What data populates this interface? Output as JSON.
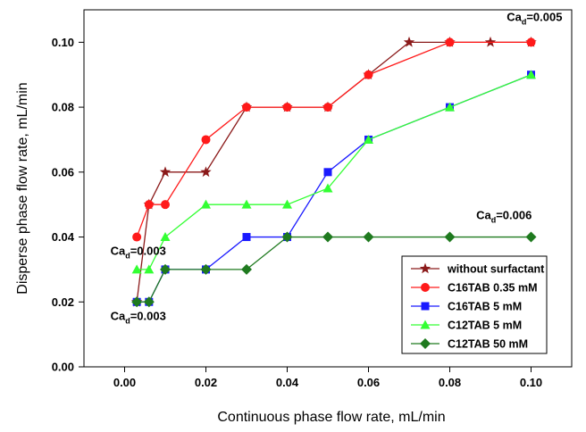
{
  "chart_data": {
    "type": "line",
    "xlabel": "Continuous phase flow rate, mL/min",
    "ylabel": "Disperse phase flow rate, mL/min",
    "xlim": [
      -0.01,
      0.11
    ],
    "ylim": [
      0.0,
      0.11
    ],
    "xticks": [
      "0.00",
      "0.02",
      "0.04",
      "0.06",
      "0.08",
      "0.10"
    ],
    "yticks": [
      "0.00",
      "0.02",
      "0.04",
      "0.06",
      "0.08",
      "0.10"
    ],
    "grid": false,
    "legend_position": "bottom-right",
    "series": [
      {
        "name": "without surfactant",
        "color": "#8b1a1a",
        "marker": "star",
        "x": [
          0.003,
          0.006,
          0.01,
          0.02,
          0.03,
          0.04,
          0.05,
          0.06,
          0.07,
          0.08,
          0.09,
          0.1
        ],
        "y": [
          0.02,
          0.05,
          0.06,
          0.06,
          0.08,
          0.08,
          0.08,
          0.09,
          0.1,
          0.1,
          0.1,
          0.1
        ]
      },
      {
        "name": "C16TAB 0.35 mM",
        "color": "#ff1a1a",
        "marker": "circle",
        "x": [
          0.003,
          0.006,
          0.01,
          0.02,
          0.03,
          0.04,
          0.05,
          0.06,
          0.08,
          0.1
        ],
        "y": [
          0.04,
          0.05,
          0.05,
          0.07,
          0.08,
          0.08,
          0.08,
          0.09,
          0.1,
          0.1
        ]
      },
      {
        "name": "C16TAB 5 mM",
        "color": "#1a1aff",
        "marker": "square",
        "x": [
          0.003,
          0.006,
          0.01,
          0.02,
          0.03,
          0.04,
          0.05,
          0.06,
          0.08,
          0.1
        ],
        "y": [
          0.02,
          0.02,
          0.03,
          0.03,
          0.04,
          0.04,
          0.06,
          0.07,
          0.08,
          0.09
        ]
      },
      {
        "name": "C12TAB 5 mM",
        "color": "#33ff33",
        "marker": "triangle",
        "x": [
          0.003,
          0.006,
          0.01,
          0.02,
          0.03,
          0.04,
          0.05,
          0.06,
          0.08,
          0.1
        ],
        "y": [
          0.03,
          0.03,
          0.04,
          0.05,
          0.05,
          0.05,
          0.055,
          0.07,
          0.08,
          0.09
        ]
      },
      {
        "name": "C12TAB 50 mM",
        "color": "#1f7a1f",
        "marker": "diamond",
        "x": [
          0.003,
          0.006,
          0.01,
          0.02,
          0.03,
          0.04,
          0.05,
          0.06,
          0.08,
          0.1
        ],
        "y": [
          0.02,
          0.02,
          0.03,
          0.03,
          0.03,
          0.04,
          0.04,
          0.04,
          0.04,
          0.04
        ]
      }
    ],
    "annotations": [
      {
        "base": "Ca",
        "sub": "d",
        "rest": "=0.005",
        "x": 0.094,
        "y": 0.1065
      },
      {
        "base": "Ca",
        "sub": "d",
        "rest": "=0.006",
        "x": 0.0865,
        "y": 0.0455
      },
      {
        "base": "Ca",
        "sub": "d",
        "rest": "=0.003",
        "x": -0.0035,
        "y": 0.0345
      },
      {
        "base": "Ca",
        "sub": "d",
        "rest": "=0.003",
        "x": -0.0035,
        "y": 0.0145
      }
    ]
  }
}
